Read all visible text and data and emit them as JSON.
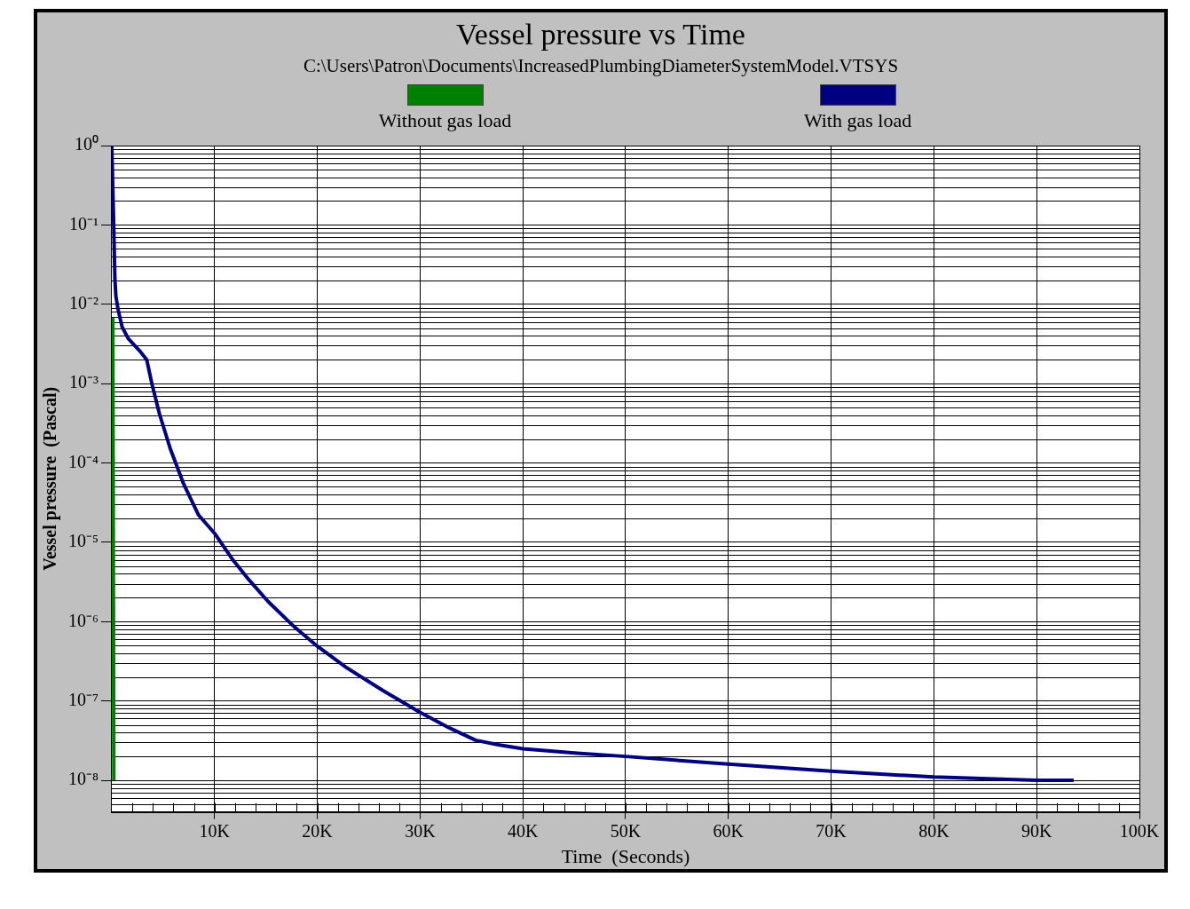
{
  "chart_data": {
    "type": "line",
    "title": "Vessel pressure vs Time",
    "subtitle": "C:\\Users\\Patron\\Documents\\IncreasedPlumbingDiameterSystemModel.VTSYS",
    "xlabel": "Time  (Seconds)",
    "ylabel": "Vessel pressure  (Pascal)",
    "log": "y",
    "grid": true,
    "legend": "top",
    "marker": "none",
    "line_style": "solid",
    "xlim": [
      0,
      100000
    ],
    "ylim": [
      4e-09,
      1
    ],
    "xticks": [
      {
        "value": 10000,
        "label": "10K"
      },
      {
        "value": 20000,
        "label": "20K"
      },
      {
        "value": 30000,
        "label": "30K"
      },
      {
        "value": 40000,
        "label": "40K"
      },
      {
        "value": 50000,
        "label": "50K"
      },
      {
        "value": 60000,
        "label": "60K"
      },
      {
        "value": 70000,
        "label": "70K"
      },
      {
        "value": 80000,
        "label": "80K"
      },
      {
        "value": 90000,
        "label": "90K"
      },
      {
        "value": 100000,
        "label": "100K"
      }
    ],
    "yticks": [
      {
        "value": 1,
        "label": "10⁰"
      },
      {
        "value": 0.1,
        "label": "10⁻¹"
      },
      {
        "value": 0.01,
        "label": "10⁻²"
      },
      {
        "value": 0.001,
        "label": "10⁻³"
      },
      {
        "value": 0.0001,
        "label": "10⁻⁴"
      },
      {
        "value": 1e-05,
        "label": "10⁻⁵"
      },
      {
        "value": 1e-06,
        "label": "10⁻⁶"
      },
      {
        "value": 1e-07,
        "label": "10⁻⁷"
      },
      {
        "value": 1e-08,
        "label": "10⁻⁸"
      }
    ],
    "series": [
      {
        "name": "Without gas load",
        "color": "#008000",
        "x": [
          100,
          200
        ],
        "values": [
          0.0068,
          1e-08
        ]
      },
      {
        "name": "With gas load",
        "color": "#000080",
        "x": [
          0,
          200,
          300,
          400,
          600,
          1000,
          1600,
          2700,
          3400,
          3900,
          4650,
          5700,
          7000,
          8450,
          10000,
          11700,
          13400,
          15200,
          17800,
          20000,
          22900,
          26400,
          30000,
          32800,
          35400,
          37600,
          40000,
          45300,
          50000,
          60000,
          70000,
          80000,
          90000,
          93600
        ],
        "values": [
          1,
          0.085,
          0.021,
          0.0126,
          0.0087,
          0.0052,
          0.0037,
          0.0026,
          0.002,
          0.001,
          0.00041,
          0.00015,
          5.4e-05,
          2.2e-05,
          1.3e-05,
          6.2e-06,
          3.3e-06,
          1.8e-06,
          8.5e-07,
          4.9e-07,
          2.6e-07,
          1.35e-07,
          7.2e-08,
          4.6e-08,
          3.2e-08,
          2.8e-08,
          2.5e-08,
          2.2e-08,
          2e-08,
          1.6e-08,
          1.3e-08,
          1.1e-08,
          1e-08,
          1e-08
        ]
      }
    ]
  }
}
